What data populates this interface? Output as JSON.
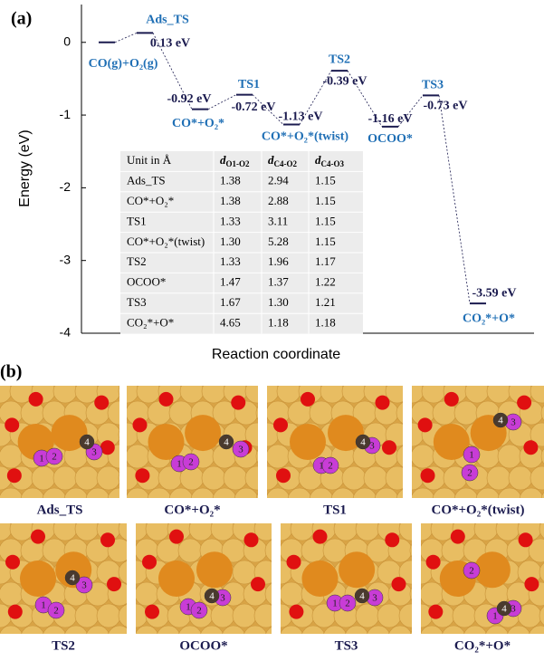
{
  "chart_data": {
    "type": "energy-profile",
    "panel_label": "(a)",
    "x_label": "Reaction coordinate",
    "y_label": "Energy (eV)",
    "ylim": [
      -4,
      0.52
    ],
    "yticks": [
      0,
      -1,
      -2,
      -3,
      -4
    ],
    "categories": [
      "CO(g)+O₂(g)",
      "Ads_TS",
      "CO*+O₂*",
      "TS1",
      "CO*+O₂*(twist)",
      "TS2",
      "OCOO*",
      "TS3",
      "CO₂*+O*"
    ],
    "values": [
      0,
      0.13,
      -0.92,
      -0.72,
      -1.13,
      -0.39,
      -1.16,
      -0.73,
      -3.59
    ],
    "value_labels": [
      null,
      "0.13 eV",
      "-0.92 eV",
      "-0.72 eV",
      "-1.13 eV",
      "-0.39 eV",
      "-1.16 eV",
      "-0.73 eV",
      "-3.59 eV"
    ],
    "color": "#1b1b4f",
    "label_color": "#1f6fb5"
  },
  "table": {
    "header": [
      "Unit in Å",
      {
        "symbol": "d",
        "sub": "O1-O2"
      },
      {
        "symbol": "d",
        "sub": "C4-O2"
      },
      {
        "symbol": "d",
        "sub": "C4-O3"
      }
    ],
    "rows": [
      [
        "Ads_TS",
        "1.38",
        "2.94",
        "1.15"
      ],
      [
        "CO*+O₂*",
        "1.38",
        "2.88",
        "1.15"
      ],
      [
        "TS1",
        "1.33",
        "3.11",
        "1.15"
      ],
      [
        "CO*+O₂*(twist)",
        "1.30",
        "5.28",
        "1.15"
      ],
      [
        "TS2",
        "1.33",
        "1.96",
        "1.17"
      ],
      [
        "OCOO*",
        "1.47",
        "1.37",
        "1.22"
      ],
      [
        "TS3",
        "1.67",
        "1.30",
        "1.21"
      ],
      [
        "CO₂*+O*",
        "4.65",
        "1.18",
        "1.18"
      ]
    ]
  },
  "structures": {
    "panel_label": "(b)",
    "panels": [
      {
        "caption": "Ads_TS",
        "atoms": [
          "1",
          "2",
          "3",
          "4"
        ]
      },
      {
        "caption": "CO*+O₂*",
        "atoms": [
          "1",
          "2",
          "3",
          "4"
        ]
      },
      {
        "caption": "TS1",
        "atoms": [
          "1",
          "2",
          "3",
          "4"
        ]
      },
      {
        "caption": "CO*+O₂*(twist)",
        "atoms": [
          "1",
          "2",
          "3",
          "4"
        ]
      },
      {
        "caption": "TS2",
        "atoms": [
          "1",
          "2",
          "3",
          "4"
        ]
      },
      {
        "caption": "OCOO*",
        "atoms": [
          "1",
          "2",
          "3",
          "4"
        ]
      },
      {
        "caption": "TS3",
        "atoms": [
          "1",
          "2",
          "3",
          "4"
        ]
      },
      {
        "caption": "CO₂*+O*",
        "atoms": [
          "1",
          "2",
          "3",
          "4"
        ]
      }
    ]
  }
}
